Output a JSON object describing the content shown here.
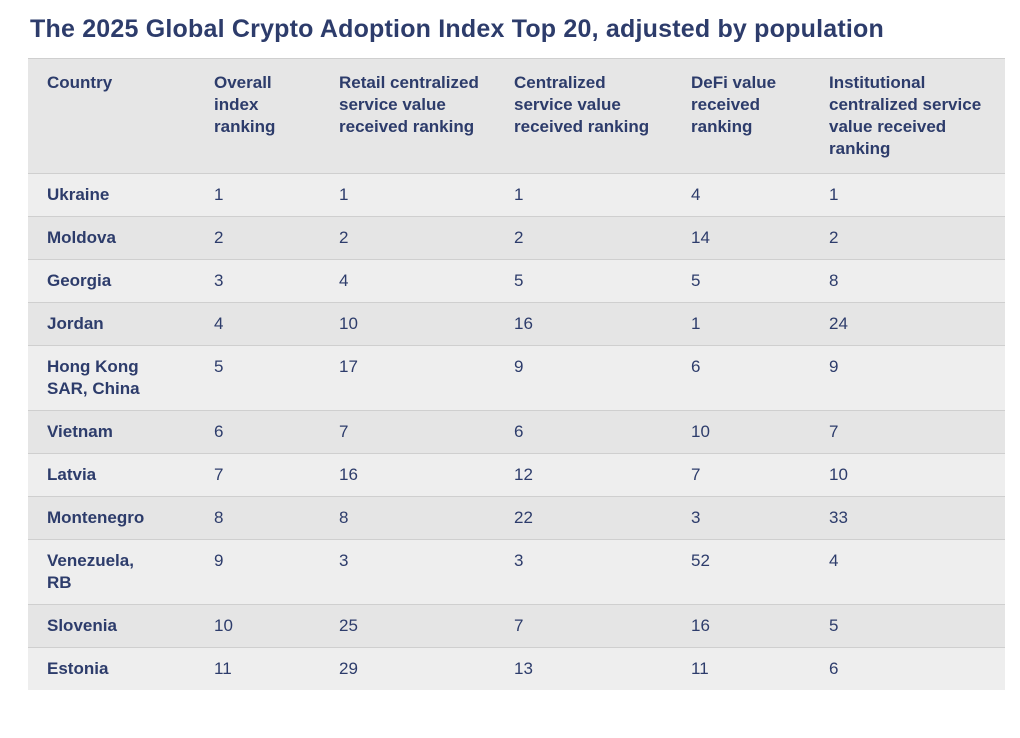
{
  "title": "The 2025 Global Crypto Adoption Index Top 20, adjusted by population",
  "chart_data": {
    "type": "table",
    "title": "The 2025 Global Crypto Adoption Index Top 20, adjusted by population",
    "columns": [
      "Country",
      "Overall index ranking",
      "Retail centralized service value received ranking",
      "Centralized service value received ranking",
      "DeFi value received ranking",
      "Institutional centralized service value received ranking"
    ],
    "rows": [
      {
        "country": "Ukraine",
        "values": [
          1,
          1,
          1,
          4,
          1
        ]
      },
      {
        "country": "Moldova",
        "values": [
          2,
          2,
          2,
          14,
          2
        ]
      },
      {
        "country": "Georgia",
        "values": [
          3,
          4,
          5,
          5,
          8
        ]
      },
      {
        "country": "Jordan",
        "values": [
          4,
          10,
          16,
          1,
          24
        ]
      },
      {
        "country": "Hong Kong SAR, China",
        "values": [
          5,
          17,
          9,
          6,
          9
        ]
      },
      {
        "country": "Vietnam",
        "values": [
          6,
          7,
          6,
          10,
          7
        ]
      },
      {
        "country": "Latvia",
        "values": [
          7,
          16,
          12,
          7,
          10
        ]
      },
      {
        "country": "Montenegro",
        "values": [
          8,
          8,
          22,
          3,
          33
        ]
      },
      {
        "country": "Venezuela, RB",
        "values": [
          9,
          3,
          3,
          52,
          4
        ]
      },
      {
        "country": "Slovenia",
        "values": [
          10,
          25,
          7,
          16,
          5
        ]
      },
      {
        "country": "Estonia",
        "values": [
          11,
          29,
          13,
          11,
          6
        ]
      }
    ]
  },
  "colors": {
    "text_navy": "#2d3c6b",
    "header_row_bg": "#e6e6e6",
    "row_light_bg": "#eeeeee",
    "row_dark_bg": "#e5e5e5",
    "divider": "#cfcfcf",
    "page_bg": "#ffffff"
  }
}
